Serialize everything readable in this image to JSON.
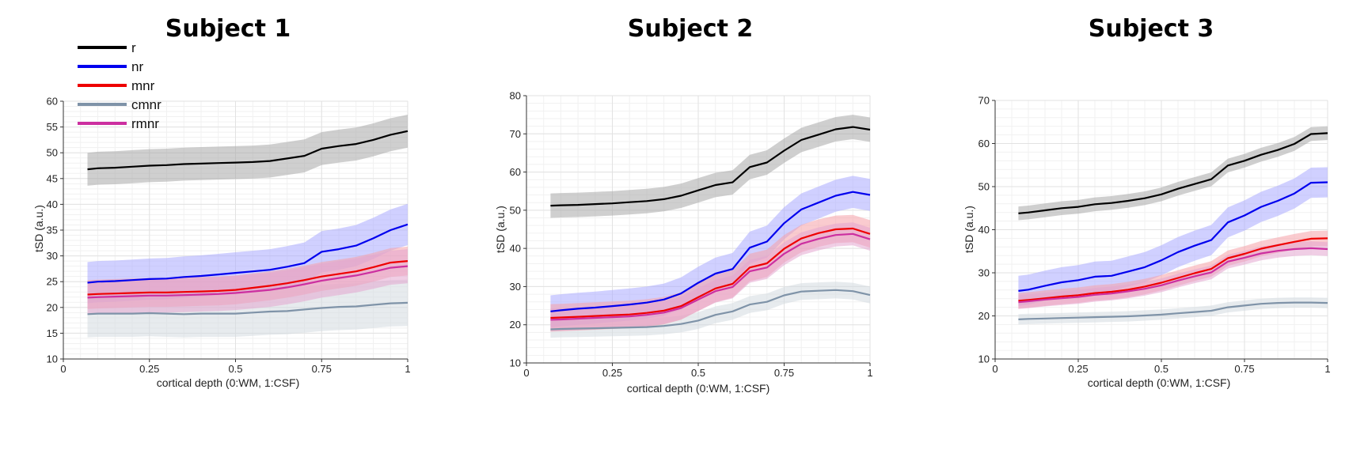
{
  "legend": [
    {
      "name": "r",
      "color": "#000000",
      "band": "#a8a8a8"
    },
    {
      "name": "nr",
      "color": "#0000ee",
      "band": "#aaaaff"
    },
    {
      "name": "mnr",
      "color": "#ee0000",
      "band": "#f5a0a8"
    },
    {
      "name": "cmnr",
      "color": "#7f93a8",
      "band": "#d3dae0"
    },
    {
      "name": "rmnr",
      "color": "#cc2fa0",
      "band": "#e3a6cf"
    }
  ],
  "chart_data": [
    {
      "type": "line",
      "title": "Subject 1",
      "xlabel": "cortical depth (0:WM, 1:CSF)",
      "ylabel": "tSD (a.u.)",
      "xlim": [
        0,
        1
      ],
      "ylim": [
        10,
        60
      ],
      "xticks": [
        0,
        0.25,
        0.5,
        0.75,
        1
      ],
      "xtick_labels": [
        "0",
        "0.25",
        "0.5",
        "0.75",
        "1"
      ],
      "yticks": [
        10,
        15,
        20,
        25,
        30,
        35,
        40,
        45,
        50,
        55,
        60
      ],
      "grid": true,
      "x": [
        0.07,
        0.1,
        0.15,
        0.2,
        0.25,
        0.3,
        0.35,
        0.4,
        0.45,
        0.5,
        0.55,
        0.6,
        0.65,
        0.7,
        0.75,
        0.8,
        0.85,
        0.9,
        0.95,
        1.0
      ],
      "series": [
        {
          "name": "r",
          "values": [
            46.8,
            47.0,
            47.1,
            47.3,
            47.5,
            47.6,
            47.8,
            47.9,
            48.0,
            48.1,
            48.2,
            48.4,
            48.9,
            49.4,
            50.8,
            51.3,
            51.7,
            52.5,
            53.5,
            54.2
          ],
          "spread": 3.2
        },
        {
          "name": "nr",
          "values": [
            24.8,
            25.0,
            25.1,
            25.3,
            25.5,
            25.6,
            25.9,
            26.1,
            26.4,
            26.7,
            27.0,
            27.3,
            27.9,
            28.6,
            30.8,
            31.3,
            32.0,
            33.4,
            35.0,
            36.1
          ],
          "spread": 4.0
        },
        {
          "name": "mnr",
          "values": [
            22.5,
            22.6,
            22.7,
            22.8,
            22.9,
            22.9,
            23.0,
            23.1,
            23.2,
            23.4,
            23.8,
            24.2,
            24.7,
            25.3,
            26.0,
            26.5,
            27.0,
            27.8,
            28.7,
            29.0
          ],
          "spread": 2.8
        },
        {
          "name": "cmnr",
          "values": [
            18.7,
            18.8,
            18.8,
            18.8,
            18.9,
            18.8,
            18.7,
            18.8,
            18.8,
            18.8,
            19.0,
            19.2,
            19.3,
            19.6,
            19.9,
            20.1,
            20.2,
            20.5,
            20.8,
            20.9
          ],
          "spread": 4.5
        },
        {
          "name": "rmnr",
          "values": [
            21.9,
            22.0,
            22.1,
            22.2,
            22.3,
            22.3,
            22.4,
            22.5,
            22.6,
            22.8,
            23.1,
            23.4,
            23.9,
            24.5,
            25.2,
            25.7,
            26.2,
            26.9,
            27.7,
            28.0
          ],
          "spread": 3.3
        }
      ]
    },
    {
      "type": "line",
      "title": "Subject 2",
      "xlabel": "cortical depth (0:WM, 1:CSF)",
      "ylabel": "tSD (a.u.)",
      "xlim": [
        0,
        1
      ],
      "ylim": [
        10,
        80
      ],
      "xticks": [
        0,
        0.25,
        0.5,
        0.75,
        1
      ],
      "xtick_labels": [
        "0",
        "0.25",
        "0.5",
        "0.75",
        "1"
      ],
      "yticks": [
        10,
        20,
        30,
        40,
        50,
        60,
        70,
        80
      ],
      "grid": true,
      "x": [
        0.07,
        0.1,
        0.15,
        0.2,
        0.25,
        0.3,
        0.35,
        0.4,
        0.45,
        0.5,
        0.55,
        0.6,
        0.65,
        0.7,
        0.75,
        0.8,
        0.85,
        0.9,
        0.95,
        1.0
      ],
      "series": [
        {
          "name": "r",
          "values": [
            51.2,
            51.3,
            51.4,
            51.6,
            51.8,
            52.1,
            52.4,
            52.9,
            53.8,
            55.2,
            56.6,
            57.3,
            61.3,
            62.5,
            65.6,
            68.4,
            69.8,
            71.2,
            71.8,
            71.1
          ],
          "spread": 3.2
        },
        {
          "name": "nr",
          "values": [
            23.5,
            23.8,
            24.2,
            24.5,
            24.9,
            25.3,
            25.8,
            26.6,
            28.2,
            31.0,
            33.4,
            34.6,
            40.2,
            41.8,
            46.6,
            50.2,
            52.0,
            53.8,
            54.8,
            54.0
          ],
          "spread": 4.2
        },
        {
          "name": "mnr",
          "values": [
            21.8,
            21.9,
            22.1,
            22.3,
            22.5,
            22.7,
            23.1,
            23.7,
            24.9,
            27.2,
            29.5,
            30.7,
            35.0,
            36.1,
            39.9,
            42.6,
            44.0,
            45.0,
            45.2,
            43.8
          ],
          "spread": 3.6
        },
        {
          "name": "cmnr",
          "values": [
            18.8,
            18.9,
            19.0,
            19.1,
            19.2,
            19.3,
            19.4,
            19.7,
            20.2,
            21.1,
            22.6,
            23.5,
            25.3,
            26.0,
            27.7,
            28.7,
            28.9,
            29.1,
            28.8,
            27.8
          ],
          "spread": 2.2
        },
        {
          "name": "rmnr",
          "values": [
            21.3,
            21.4,
            21.6,
            21.8,
            22.0,
            22.2,
            22.6,
            23.2,
            24.4,
            26.6,
            28.8,
            29.9,
            34.0,
            35.0,
            38.6,
            41.2,
            42.5,
            43.5,
            43.8,
            42.4
          ],
          "spread": 3.0
        }
      ]
    },
    {
      "type": "line",
      "title": "Subject 3",
      "xlabel": "cortical depth (0:WM, 1:CSF)",
      "ylabel": "tSD (a.u.)",
      "xlim": [
        0,
        1
      ],
      "ylim": [
        10,
        70
      ],
      "xticks": [
        0,
        0.25,
        0.5,
        0.75,
        1
      ],
      "xtick_labels": [
        "0",
        "0.25",
        "0.5",
        "0.75",
        "1"
      ],
      "yticks": [
        10,
        20,
        30,
        40,
        50,
        60,
        70
      ],
      "grid": true,
      "x": [
        0.07,
        0.1,
        0.15,
        0.2,
        0.25,
        0.3,
        0.35,
        0.4,
        0.45,
        0.5,
        0.55,
        0.6,
        0.65,
        0.7,
        0.75,
        0.8,
        0.85,
        0.9,
        0.95,
        1.0
      ],
      "series": [
        {
          "name": "r",
          "values": [
            43.8,
            44.0,
            44.5,
            45.0,
            45.3,
            45.9,
            46.2,
            46.7,
            47.3,
            48.2,
            49.5,
            50.6,
            51.7,
            54.9,
            56.0,
            57.4,
            58.5,
            59.9,
            62.2,
            62.4
          ],
          "spread": 1.6
        },
        {
          "name": "nr",
          "values": [
            25.8,
            26.1,
            27.0,
            27.8,
            28.3,
            29.1,
            29.3,
            30.3,
            31.3,
            32.9,
            34.8,
            36.3,
            37.6,
            41.7,
            43.3,
            45.3,
            46.7,
            48.4,
            50.9,
            51.0
          ],
          "spread": 3.5
        },
        {
          "name": "mnr",
          "values": [
            23.5,
            23.7,
            24.1,
            24.5,
            24.8,
            25.3,
            25.6,
            26.1,
            26.8,
            27.7,
            28.8,
            29.9,
            30.9,
            33.4,
            34.4,
            35.6,
            36.4,
            37.2,
            37.9,
            38.0
          ],
          "spread": 1.8
        },
        {
          "name": "cmnr",
          "values": [
            19.2,
            19.3,
            19.4,
            19.5,
            19.6,
            19.7,
            19.8,
            19.9,
            20.1,
            20.3,
            20.6,
            20.9,
            21.2,
            22.0,
            22.4,
            22.8,
            23.0,
            23.1,
            23.1,
            23.0
          ],
          "spread": 1.2
        },
        {
          "name": "rmnr",
          "values": [
            23.2,
            23.4,
            23.8,
            24.1,
            24.4,
            24.9,
            25.2,
            25.7,
            26.3,
            27.1,
            28.2,
            29.2,
            30.1,
            32.6,
            33.5,
            34.5,
            35.1,
            35.5,
            35.7,
            35.5
          ],
          "spread": 1.6
        }
      ]
    }
  ]
}
